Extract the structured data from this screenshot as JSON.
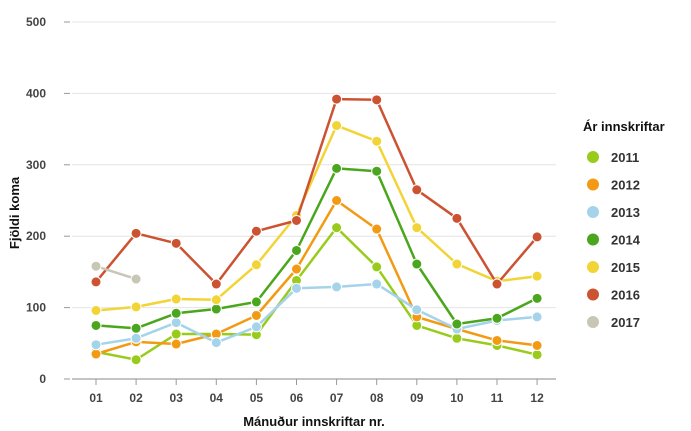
{
  "chart_data": {
    "type": "line",
    "title": "",
    "xlabel": "Mánuður innskriftar nr.",
    "ylabel": "Fjöldi koma",
    "categories": [
      "01",
      "02",
      "03",
      "04",
      "05",
      "06",
      "07",
      "08",
      "09",
      "10",
      "11",
      "12"
    ],
    "ylim": [
      0,
      500
    ],
    "yticks": [
      0,
      100,
      200,
      300,
      400,
      500
    ],
    "grid": true,
    "legend": {
      "title": "Ár innskriftar",
      "position": "right"
    },
    "series": [
      {
        "name": "2011",
        "color": "#99cc1a",
        "values": [
          38,
          27,
          63,
          63,
          62,
          138,
          212,
          157,
          75,
          57,
          47,
          34
        ]
      },
      {
        "name": "2012",
        "color": "#f39a14",
        "values": [
          35,
          52,
          49,
          63,
          89,
          154,
          250,
          210,
          87,
          70,
          54,
          47
        ]
      },
      {
        "name": "2013",
        "color": "#a5d3ea",
        "values": [
          48,
          57,
          79,
          51,
          73,
          127,
          129,
          133,
          97,
          70,
          82,
          87
        ]
      },
      {
        "name": "2014",
        "color": "#4aa61c",
        "values": [
          75,
          71,
          92,
          98,
          108,
          180,
          295,
          291,
          161,
          77,
          85,
          113
        ]
      },
      {
        "name": "2015",
        "color": "#f2d437",
        "values": [
          96,
          101,
          112,
          111,
          160,
          229,
          355,
          333,
          212,
          161,
          137,
          144
        ]
      },
      {
        "name": "2016",
        "color": "#cc5332",
        "values": [
          136,
          204,
          190,
          133,
          207,
          222,
          392,
          391,
          265,
          225,
          133,
          199
        ]
      },
      {
        "name": "2017",
        "color": "#c8c7b5",
        "values": [
          158,
          140,
          null,
          null,
          null,
          null,
          null,
          null,
          null,
          null,
          null,
          null
        ]
      }
    ]
  }
}
